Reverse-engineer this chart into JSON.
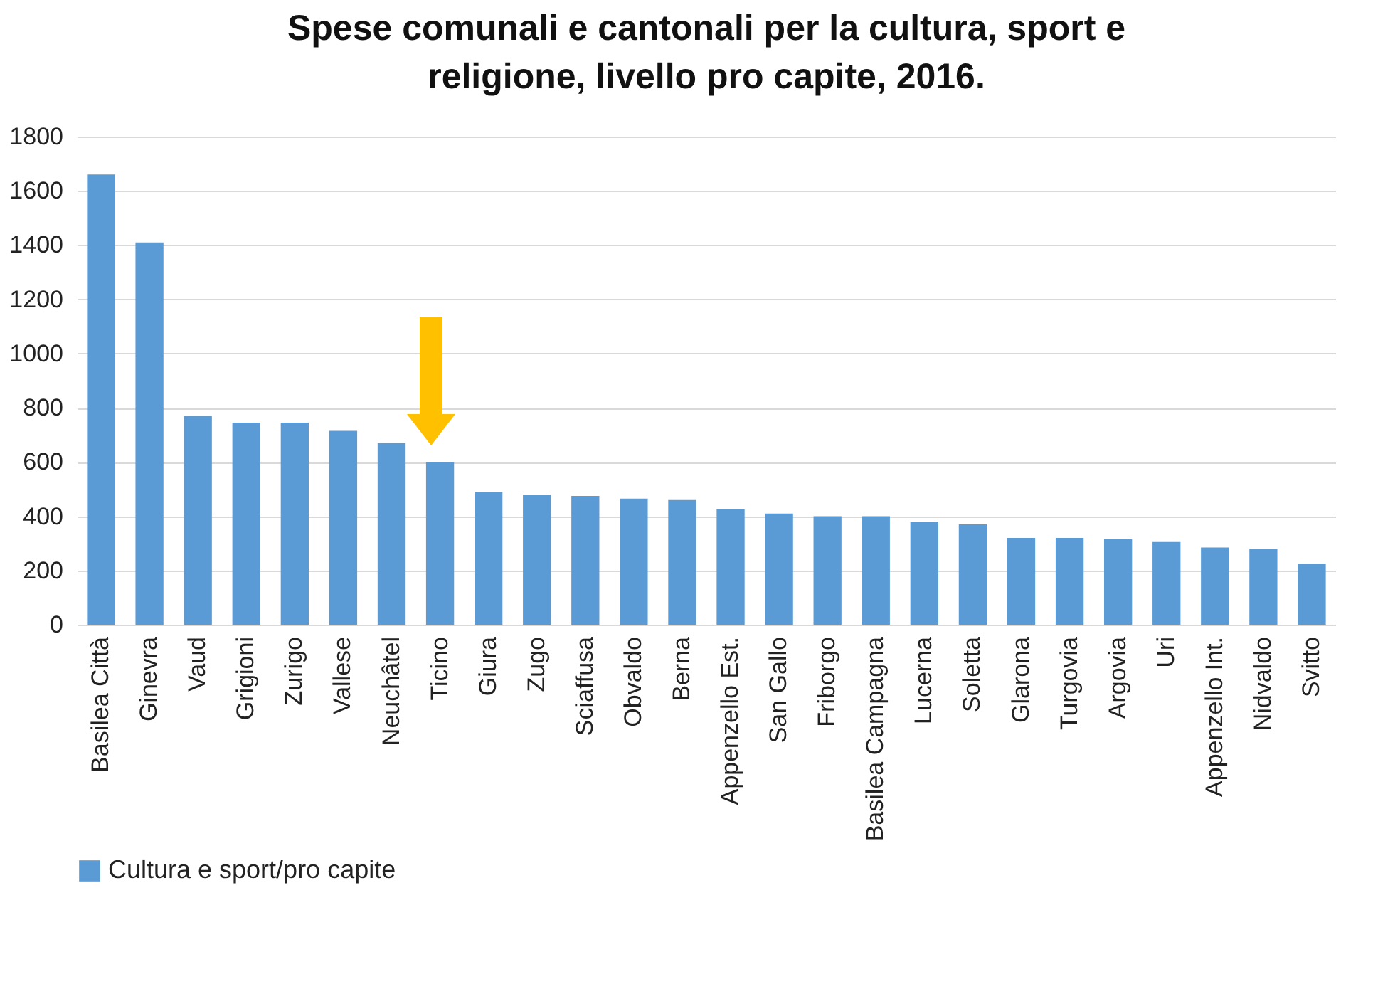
{
  "chart_data": {
    "type": "bar",
    "title": [
      "Spese comunali e cantonali per la cultura, sport e",
      "religione, livello pro capite, 2016."
    ],
    "categories": [
      "Basilea Città",
      "Ginevra",
      "Vaud",
      "Grigioni",
      "Zurigo",
      "Vallese",
      "Neuchâtel",
      "Ticino",
      "Giura",
      "Zugo",
      "Sciaffusa",
      "Obvaldo",
      "Berna",
      "Appenzello Est.",
      "San Gallo",
      "Friborgo",
      "Basilea Campagna",
      "Lucerna",
      "Soletta",
      "Glarona",
      "Turgovia",
      "Argovia",
      "Uri",
      "Appenzello Int.",
      "Nidvaldo",
      "Svitto"
    ],
    "series": [
      {
        "name": "Cultura e sport/pro capite",
        "color": "#5b9bd5",
        "values": [
          1660,
          1410,
          770,
          745,
          745,
          715,
          670,
          600,
          490,
          480,
          475,
          465,
          460,
          425,
          410,
          400,
          400,
          380,
          370,
          320,
          320,
          315,
          305,
          285,
          280,
          225
        ]
      }
    ],
    "ylim": [
      0,
      1800
    ],
    "yticks": [
      0,
      200,
      400,
      600,
      800,
      1000,
      1200,
      1400,
      1600,
      1800
    ],
    "grid": "y",
    "legend": "bottom"
  }
}
